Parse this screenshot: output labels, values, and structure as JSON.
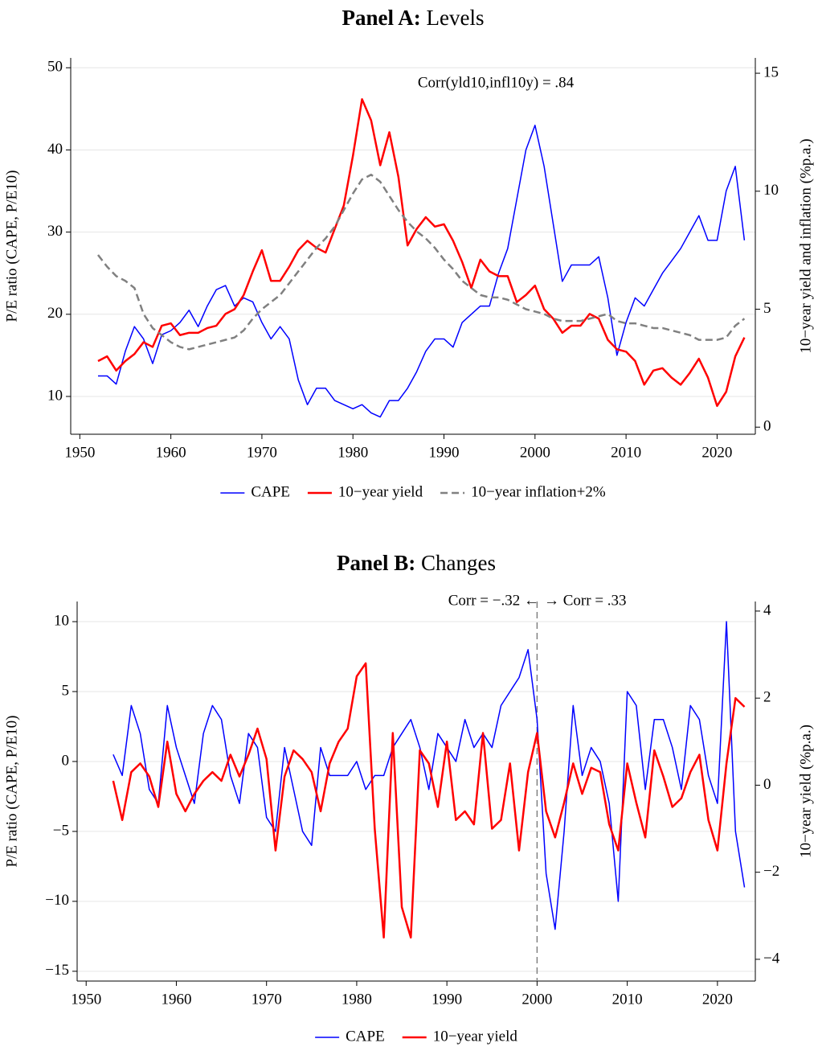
{
  "chart_data": [
    {
      "type": "line",
      "panel_label": "Panel A:",
      "title": "Levels",
      "y_label": "P/E ratio (CAPE, P/E10)",
      "y2_label": "10−year yield and inflation (%p.a.)",
      "annotations": [
        "Corr(yld10,infl10y) = .84"
      ],
      "xlim": [
        1949,
        2024.2
      ],
      "xticks": [
        1950,
        1960,
        1970,
        1980,
        1990,
        2000,
        2010,
        2020
      ],
      "ylim": [
        5.4,
        51.2
      ],
      "yticks": [
        10,
        20,
        30,
        40,
        50
      ],
      "y2lim": [
        -0.3,
        15.65
      ],
      "y2ticks": [
        0,
        5,
        10,
        15
      ],
      "grid": true,
      "x": [
        1952,
        1953,
        1954,
        1955,
        1956,
        1957,
        1958,
        1959,
        1960,
        1961,
        1962,
        1963,
        1964,
        1965,
        1966,
        1967,
        1968,
        1969,
        1970,
        1971,
        1972,
        1973,
        1974,
        1975,
        1976,
        1977,
        1978,
        1979,
        1980,
        1981,
        1982,
        1983,
        1984,
        1985,
        1986,
        1987,
        1988,
        1989,
        1990,
        1991,
        1992,
        1993,
        1994,
        1995,
        1996,
        1997,
        1998,
        1999,
        2000,
        2001,
        2002,
        2003,
        2004,
        2005,
        2006,
        2007,
        2008,
        2009,
        2010,
        2011,
        2012,
        2013,
        2014,
        2015,
        2016,
        2017,
        2018,
        2019,
        2020,
        2021,
        2022,
        2023
      ],
      "series": [
        {
          "name": "CAPE",
          "color": "#0000ff",
          "style": "solid",
          "width": 1.5,
          "axis": "y",
          "values": [
            12.5,
            12.5,
            11.5,
            15.5,
            18.5,
            17,
            14,
            17.5,
            18,
            19,
            20.5,
            18.5,
            21,
            23,
            23.5,
            21,
            22,
            21.5,
            19,
            17,
            18.5,
            17,
            12,
            9,
            11,
            11,
            9.5,
            9,
            8.5,
            9,
            8,
            7.5,
            9.5,
            9.5,
            11,
            13,
            15.5,
            17,
            17,
            16,
            19,
            20,
            21,
            21,
            25,
            28,
            34,
            40,
            43,
            38,
            31,
            24,
            26,
            26,
            26,
            27,
            22,
            15,
            19,
            22,
            21,
            23,
            25,
            26.5,
            28,
            30,
            32,
            29,
            29,
            35,
            38,
            29
          ]
        },
        {
          "name": "10−year yield",
          "color": "#ff0000",
          "style": "solid",
          "width": 2.5,
          "axis": "y2",
          "values": [
            2.8,
            3.0,
            2.4,
            2.8,
            3.1,
            3.6,
            3.4,
            4.3,
            4.4,
            3.9,
            4.0,
            4.0,
            4.2,
            4.3,
            4.8,
            5.0,
            5.6,
            6.6,
            7.5,
            6.2,
            6.2,
            6.8,
            7.5,
            7.9,
            7.6,
            7.4,
            8.4,
            9.4,
            11.5,
            13.9,
            13.0,
            11.1,
            12.5,
            10.6,
            7.7,
            8.4,
            8.9,
            8.5,
            8.6,
            7.9,
            7.0,
            5.9,
            7.1,
            6.6,
            6.4,
            6.4,
            5.3,
            5.6,
            6.0,
            5.0,
            4.6,
            4.0,
            4.3,
            4.3,
            4.8,
            4.6,
            3.7,
            3.3,
            3.2,
            2.8,
            1.8,
            2.4,
            2.5,
            2.1,
            1.8,
            2.3,
            2.9,
            2.1,
            0.9,
            1.5,
            3.0,
            3.8
          ]
        },
        {
          "name": "10−year inflation+2%",
          "color": "#808080",
          "style": "dashed",
          "width": 2.5,
          "axis": "y2",
          "values": [
            7.3,
            6.8,
            6.4,
            6.2,
            5.9,
            4.8,
            4.2,
            3.9,
            3.6,
            3.4,
            3.3,
            3.4,
            3.5,
            3.6,
            3.7,
            3.8,
            4.1,
            4.6,
            5.0,
            5.3,
            5.6,
            6.1,
            6.6,
            7.1,
            7.6,
            8.0,
            8.5,
            9.2,
            9.9,
            10.5,
            10.7,
            10.4,
            9.8,
            9.2,
            8.7,
            8.3,
            8.0,
            7.6,
            7.1,
            6.7,
            6.2,
            5.9,
            5.6,
            5.5,
            5.5,
            5.4,
            5.2,
            5.0,
            4.9,
            4.8,
            4.6,
            4.5,
            4.5,
            4.5,
            4.6,
            4.7,
            4.8,
            4.5,
            4.4,
            4.4,
            4.3,
            4.2,
            4.2,
            4.1,
            4.0,
            3.9,
            3.7,
            3.7,
            3.7,
            3.8,
            4.3,
            4.6
          ]
        }
      ]
    },
    {
      "type": "line",
      "panel_label": "Panel B:",
      "title": "Changes",
      "y_label": "P/E ratio (CAPE, P/E10)",
      "y2_label": "10−year yield (%p.a.)",
      "annotations": [
        "Corr = −.32 ←",
        "→ Corr = .33"
      ],
      "vline": 2000,
      "xlim": [
        1949,
        2024.2
      ],
      "xticks": [
        1950,
        1960,
        1970,
        1980,
        1990,
        2000,
        2010,
        2020
      ],
      "ylim": [
        -15.7,
        11.44
      ],
      "yticks": [
        {
          "value": -15,
          "label": "−15"
        },
        {
          "value": -10,
          "label": "−10"
        },
        {
          "value": -5,
          "label": "−5"
        },
        0,
        5,
        10
      ],
      "y2lim": [
        -4.5,
        4.22
      ],
      "y2ticks": [
        {
          "value": -4,
          "label": "−4"
        },
        {
          "value": -2,
          "label": "−2"
        },
        0,
        2,
        4
      ],
      "grid": true,
      "x": [
        1953,
        1954,
        1955,
        1956,
        1957,
        1958,
        1959,
        1960,
        1961,
        1962,
        1963,
        1964,
        1965,
        1966,
        1967,
        1968,
        1969,
        1970,
        1971,
        1972,
        1973,
        1974,
        1975,
        1976,
        1977,
        1978,
        1979,
        1980,
        1981,
        1982,
        1983,
        1984,
        1985,
        1986,
        1987,
        1988,
        1989,
        1990,
        1991,
        1992,
        1993,
        1994,
        1995,
        1996,
        1997,
        1998,
        1999,
        2000,
        2001,
        2002,
        2003,
        2004,
        2005,
        2006,
        2007,
        2008,
        2009,
        2010,
        2011,
        2012,
        2013,
        2014,
        2015,
        2016,
        2017,
        2018,
        2019,
        2020,
        2021,
        2022,
        2023
      ],
      "series": [
        {
          "name": "CAPE",
          "color": "#0000ff",
          "style": "solid",
          "width": 1.5,
          "axis": "y",
          "values": [
            0.5,
            -1,
            4,
            2,
            -2,
            -3,
            4,
            1,
            -1,
            -3,
            2,
            4,
            3,
            -1,
            -3,
            2,
            1,
            -4,
            -5,
            1,
            -2,
            -5,
            -6,
            1,
            -1,
            -1,
            -1,
            0,
            -2,
            -1,
            -1,
            1,
            2,
            3,
            1,
            -2,
            2,
            1,
            0,
            3,
            1,
            2,
            1,
            4,
            5,
            6,
            8,
            3,
            -8,
            -12,
            -5,
            4,
            -1,
            1,
            0,
            -3,
            -10,
            5,
            4,
            -2,
            3,
            3,
            1,
            -2,
            4,
            3,
            -1,
            -3,
            10,
            -5,
            -9
          ]
        },
        {
          "name": "10−year yield",
          "color": "#ff0000",
          "style": "solid",
          "width": 2.5,
          "axis": "y2",
          "values": [
            0.1,
            -0.8,
            0.3,
            0.5,
            0.2,
            -0.5,
            1.0,
            -0.2,
            -0.6,
            -0.2,
            0.1,
            0.3,
            0.1,
            0.7,
            0.2,
            0.7,
            1.3,
            0.6,
            -1.5,
            0.2,
            0.8,
            0.6,
            0.3,
            -0.6,
            0.5,
            1.0,
            1.3,
            2.5,
            2.8,
            -1.0,
            -3.5,
            1.2,
            -2.8,
            -3.5,
            0.8,
            0.5,
            -0.5,
            1.0,
            -0.8,
            -0.6,
            -0.9,
            1.2,
            -1.0,
            -0.8,
            0.5,
            -1.5,
            0.3,
            1.2,
            -0.6,
            -1.2,
            -0.4,
            0.5,
            -0.2,
            0.4,
            0.3,
            -0.9,
            -1.5,
            0.5,
            -0.4,
            -1.2,
            0.8,
            0.2,
            -0.5,
            -0.3,
            0.3,
            0.7,
            -0.8,
            -1.5,
            0.5,
            2.0,
            1.8
          ]
        }
      ]
    }
  ]
}
